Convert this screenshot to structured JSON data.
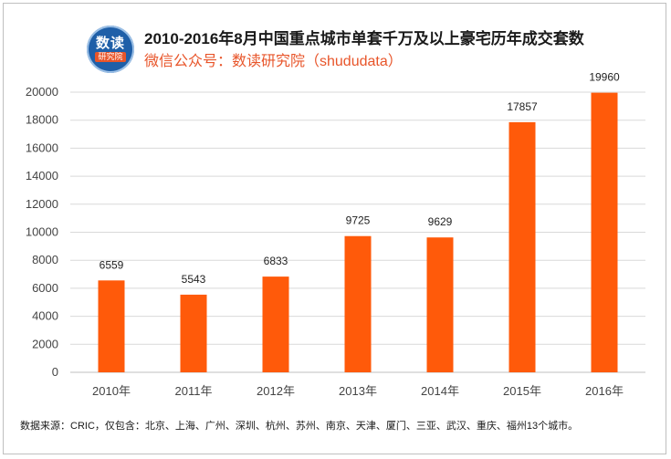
{
  "logo": {
    "line1": "数读",
    "line2": "研究院"
  },
  "chart_data": {
    "type": "bar",
    "title": "2010-2016年8月中国重点城市单套千万及以上豪宅历年成交套数",
    "subtitle": "微信公众号：数读研究院（shududata）",
    "categories": [
      "2010年",
      "2011年",
      "2012年",
      "2013年",
      "2014年",
      "2015年",
      "2016年"
    ],
    "values": [
      6559,
      5543,
      6833,
      9725,
      9629,
      17857,
      19960
    ],
    "xlabel": "",
    "ylabel": "",
    "ylim": [
      0,
      20000
    ],
    "yticks": [
      0,
      2000,
      4000,
      6000,
      8000,
      10000,
      12000,
      14000,
      16000,
      18000,
      20000
    ],
    "grid": true,
    "bar_color": "#ff5a0a",
    "footnote": "数据来源：CRIC，仅包含：北京、上海、广州、深圳、杭州、苏州、南京、天津、厦门、三亚、武汉、重庆、福州13个城市。"
  }
}
